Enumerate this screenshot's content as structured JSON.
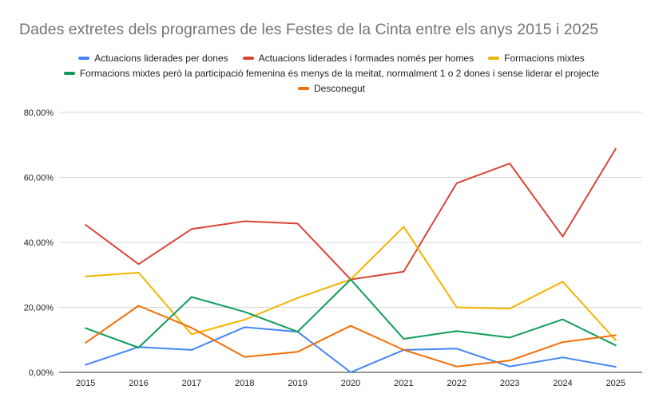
{
  "chart_data": {
    "type": "line",
    "title": "Dades extretes dels programes de les Festes de la Cinta entre els anys 2015 i 2025",
    "xlabel": "",
    "ylabel": "",
    "x": [
      "2015",
      "2016",
      "2017",
      "2018",
      "2019",
      "2020",
      "2021",
      "2022",
      "2023",
      "2024",
      "2025"
    ],
    "ylim": [
      0,
      0.8
    ],
    "yticks": [
      0,
      0.2,
      0.4,
      0.6,
      0.8
    ],
    "ytick_labels": [
      "0,00%",
      "20,00%",
      "40,00%",
      "60,00%",
      "80,00%"
    ],
    "grid": true,
    "legend_position": "top",
    "series": [
      {
        "name": "Actuacions liderades per dones",
        "color": "#4285f4",
        "values": [
          0.023,
          0.078,
          0.069,
          0.139,
          0.125,
          0.0,
          0.069,
          0.073,
          0.018,
          0.046,
          0.017
        ]
      },
      {
        "name": "Actuacions liderades i formades només per homes",
        "color": "#db4437",
        "values": [
          0.454,
          0.333,
          0.441,
          0.465,
          0.458,
          0.286,
          0.31,
          0.582,
          0.643,
          0.418,
          0.688
        ]
      },
      {
        "name": "Formacions mixtes",
        "color": "#f4b400",
        "values": [
          0.295,
          0.307,
          0.117,
          0.162,
          0.229,
          0.286,
          0.448,
          0.2,
          0.196,
          0.279,
          0.099
        ]
      },
      {
        "name": "Formacions mixtes però la participació femenina és menys de la meitat, normalment 1 o 2 dones i sense liderar el projecte",
        "color": "#0f9d58",
        "values": [
          0.136,
          0.076,
          0.232,
          0.186,
          0.125,
          0.286,
          0.103,
          0.127,
          0.107,
          0.163,
          0.083
        ]
      },
      {
        "name": "Desconegut",
        "color": "#f46d06",
        "values": [
          0.091,
          0.205,
          0.137,
          0.047,
          0.063,
          0.143,
          0.069,
          0.018,
          0.036,
          0.093,
          0.114
        ]
      }
    ]
  }
}
